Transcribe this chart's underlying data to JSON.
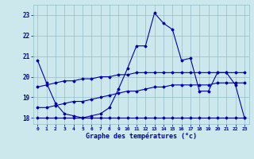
{
  "xlabel": "Graphe des températures (°c)",
  "hours": [
    0,
    1,
    2,
    3,
    4,
    5,
    6,
    7,
    8,
    9,
    10,
    11,
    12,
    13,
    14,
    15,
    16,
    17,
    18,
    19,
    20,
    21,
    22,
    23
  ],
  "temp_actual": [
    20.8,
    19.7,
    18.7,
    18.2,
    18.1,
    18.0,
    18.1,
    18.2,
    18.5,
    19.4,
    20.4,
    21.5,
    21.5,
    23.1,
    22.6,
    22.3,
    20.8,
    20.9,
    19.3,
    19.3,
    20.2,
    20.2,
    19.6,
    18.0
  ],
  "temp_min": [
    18.0,
    18.0,
    18.0,
    18.0,
    18.0,
    18.0,
    18.0,
    18.0,
    18.0,
    18.0,
    18.0,
    18.0,
    18.0,
    18.0,
    18.0,
    18.0,
    18.0,
    18.0,
    18.0,
    18.0,
    18.0,
    18.0,
    18.0,
    18.0
  ],
  "temp_avg_low": [
    18.5,
    18.5,
    18.6,
    18.7,
    18.8,
    18.8,
    18.9,
    19.0,
    19.1,
    19.2,
    19.3,
    19.3,
    19.4,
    19.5,
    19.5,
    19.6,
    19.6,
    19.6,
    19.6,
    19.6,
    19.7,
    19.7,
    19.7,
    19.7
  ],
  "temp_avg_high": [
    19.5,
    19.6,
    19.7,
    19.8,
    19.8,
    19.9,
    19.9,
    20.0,
    20.0,
    20.1,
    20.1,
    20.2,
    20.2,
    20.2,
    20.2,
    20.2,
    20.2,
    20.2,
    20.2,
    20.2,
    20.2,
    20.2,
    20.2,
    20.2
  ],
  "line_color": "#0000aa",
  "bg_color": "#cce8ec",
  "grid_color": "#90bfc8",
  "ylim": [
    17.7,
    23.5
  ],
  "yticks": [
    18,
    19,
    20,
    21,
    22,
    23
  ],
  "xlim": [
    -0.5,
    23.5
  ]
}
